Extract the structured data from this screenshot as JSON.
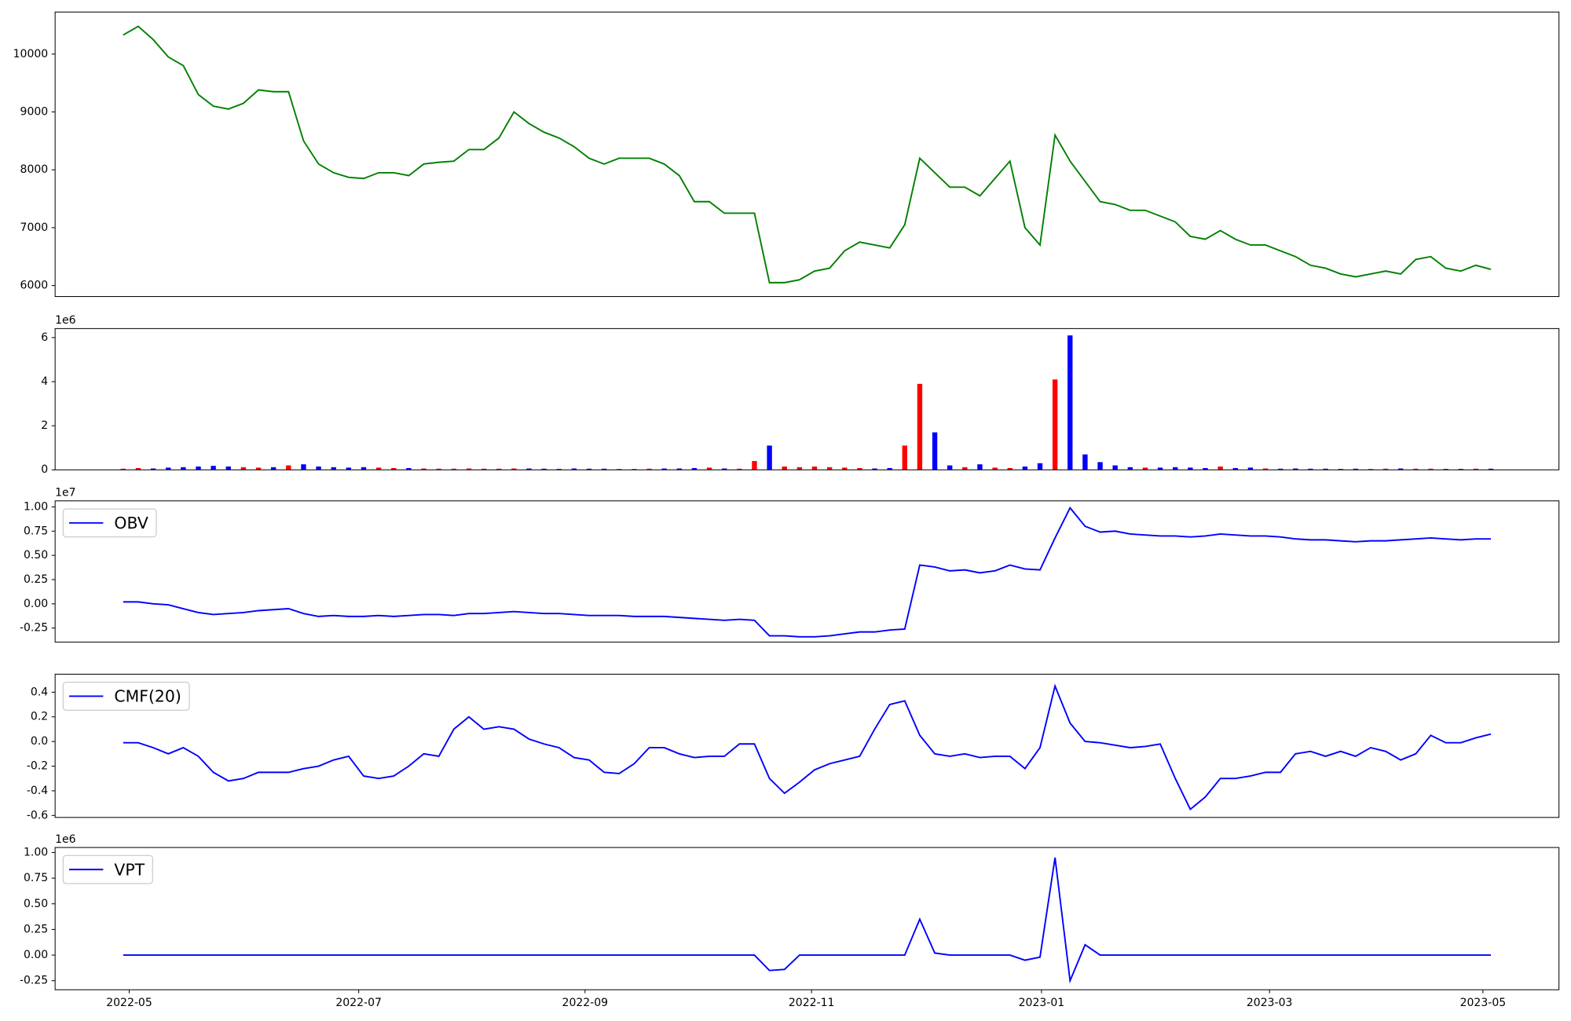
{
  "chart_data": [
    {
      "type": "line",
      "xlim": [
        -4.53,
        95.53
      ],
      "ylim": [
        5810,
        10727
      ],
      "yticks": [
        6000,
        7000,
        8000,
        9000,
        10000
      ],
      "series": [
        {
          "color": "#008000",
          "values": [
            10330,
            10480,
            10250,
            9950,
            9800,
            9300,
            9100,
            9050,
            9150,
            9380,
            9350,
            9350,
            8500,
            8100,
            7950,
            7870,
            7850,
            7950,
            7950,
            7900,
            8100,
            8130,
            8150,
            8350,
            8350,
            8550,
            9000,
            8800,
            8650,
            8550,
            8400,
            8200,
            8100,
            8200,
            8200,
            8200,
            8100,
            7900,
            7450,
            7450,
            7250,
            7250,
            7250,
            6050,
            6050,
            6100,
            6250,
            6300,
            6600,
            6750,
            6700,
            6650,
            7050,
            8200,
            7950,
            7700,
            7700,
            7550,
            7850,
            8150,
            7000,
            6700,
            8600,
            8150,
            7800,
            7450,
            7400,
            7300,
            7300,
            7200,
            7100,
            6850,
            6800,
            6950,
            6800,
            6700,
            6700,
            6600,
            6500,
            6350,
            6300,
            6200,
            6150,
            6200,
            6250,
            6200,
            6450,
            6500,
            6300,
            6250,
            6350,
            6280
          ]
        }
      ]
    },
    {
      "type": "bar",
      "xlim": [
        -4.53,
        95.53
      ],
      "ylim": [
        0,
        6.41
      ],
      "yticks": [
        0,
        2,
        4,
        6
      ],
      "yoffset_label": "1e6",
      "up_color": "#ff0000",
      "down_color": "#0000ff",
      "values": [
        0.05,
        0.08,
        0.06,
        0.1,
        0.12,
        0.15,
        0.18,
        0.15,
        0.12,
        0.1,
        0.12,
        0.2,
        0.25,
        0.15,
        0.12,
        0.1,
        0.12,
        0.1,
        0.08,
        0.08,
        0.06,
        0.05,
        0.05,
        0.06,
        0.05,
        0.05,
        0.06,
        0.06,
        0.05,
        0.04,
        0.06,
        0.05,
        0.05,
        0.04,
        0.04,
        0.05,
        0.06,
        0.06,
        0.08,
        0.1,
        0.06,
        0.05,
        0.4,
        1.1,
        0.15,
        0.12,
        0.15,
        0.12,
        0.1,
        0.08,
        0.06,
        0.08,
        1.1,
        3.9,
        1.7,
        0.2,
        0.12,
        0.25,
        0.1,
        0.08,
        0.15,
        0.3,
        4.1,
        6.1,
        0.7,
        0.35,
        0.2,
        0.12,
        0.1,
        0.1,
        0.12,
        0.1,
        0.08,
        0.15,
        0.08,
        0.1,
        0.06,
        0.05,
        0.06,
        0.05,
        0.05,
        0.04,
        0.05,
        0.04,
        0.05,
        0.06,
        0.05,
        0.05,
        0.04,
        0.04,
        0.05,
        0.05
      ]
    },
    {
      "type": "line",
      "xlim": [
        -4.53,
        95.53
      ],
      "ylim": [
        -0.395,
        1.062
      ],
      "yoffset_label": "1e7",
      "legend": "upper left",
      "yticks": [
        -0.25,
        {
          "value": 0,
          "label": "0.00"
        },
        0.25,
        {
          "value": 0.5,
          "label": "0.50"
        },
        0.75,
        {
          "value": 1,
          "label": "1.00"
        }
      ],
      "series": [
        {
          "name": "OBV",
          "color": "#0000ff",
          "values": [
            0.02,
            0.02,
            0.0,
            -0.01,
            -0.05,
            -0.09,
            -0.11,
            -0.1,
            -0.09,
            -0.07,
            -0.06,
            -0.05,
            -0.1,
            -0.13,
            -0.12,
            -0.13,
            -0.13,
            -0.12,
            -0.13,
            -0.12,
            -0.11,
            -0.11,
            -0.12,
            -0.1,
            -0.1,
            -0.09,
            -0.08,
            -0.09,
            -0.1,
            -0.1,
            -0.11,
            -0.12,
            -0.12,
            -0.12,
            -0.13,
            -0.13,
            -0.13,
            -0.14,
            -0.15,
            -0.16,
            -0.17,
            -0.16,
            -0.17,
            -0.33,
            -0.33,
            -0.34,
            -0.34,
            -0.33,
            -0.31,
            -0.29,
            -0.29,
            -0.27,
            -0.26,
            0.4,
            0.38,
            0.34,
            0.35,
            0.32,
            0.34,
            0.4,
            0.36,
            0.35,
            0.68,
            0.99,
            0.8,
            0.74,
            0.75,
            0.72,
            0.71,
            0.7,
            0.7,
            0.69,
            0.7,
            0.72,
            0.71,
            0.7,
            0.7,
            0.69,
            0.67,
            0.66,
            0.66,
            0.65,
            0.64,
            0.65,
            0.65,
            0.66,
            0.67,
            0.68,
            0.67,
            0.66,
            0.67,
            0.67
          ]
        }
      ]
    },
    {
      "type": "line",
      "xlim": [
        -4.53,
        95.53
      ],
      "ylim": [
        -0.616,
        0.546
      ],
      "legend": "upper left",
      "yticks": [
        -0.6,
        -0.4,
        -0.2,
        {
          "value": 0,
          "label": "0.0"
        },
        0.2,
        0.4
      ],
      "series": [
        {
          "name": "CMF(20)",
          "color": "#0000ff",
          "values": [
            -0.01,
            -0.01,
            -0.05,
            -0.1,
            -0.05,
            -0.12,
            -0.25,
            -0.32,
            -0.3,
            -0.25,
            -0.25,
            -0.25,
            -0.22,
            -0.2,
            -0.15,
            -0.12,
            -0.28,
            -0.3,
            -0.28,
            -0.2,
            -0.1,
            -0.12,
            0.1,
            0.2,
            0.1,
            0.12,
            0.1,
            0.02,
            -0.02,
            -0.05,
            -0.13,
            -0.15,
            -0.25,
            -0.26,
            -0.18,
            -0.05,
            -0.05,
            -0.1,
            -0.13,
            -0.12,
            -0.12,
            -0.02,
            -0.02,
            -0.3,
            -0.42,
            -0.33,
            -0.23,
            -0.18,
            -0.15,
            -0.12,
            0.1,
            0.3,
            0.33,
            0.05,
            -0.1,
            -0.12,
            -0.1,
            -0.13,
            -0.12,
            -0.12,
            -0.22,
            -0.05,
            0.45,
            0.15,
            0.0,
            -0.01,
            -0.03,
            -0.05,
            -0.04,
            -0.02,
            -0.3,
            -0.55,
            -0.45,
            -0.3,
            -0.3,
            -0.28,
            -0.25,
            -0.25,
            -0.1,
            -0.08,
            -0.12,
            -0.08,
            -0.12,
            -0.05,
            -0.08,
            -0.15,
            -0.1,
            0.05,
            -0.01,
            -0.01,
            0.03,
            0.06
          ]
        }
      ]
    },
    {
      "type": "line",
      "xlim": [
        -4.53,
        95.53
      ],
      "ylim": [
        -0.338,
        1.049
      ],
      "yoffset_label": "1e6",
      "legend": "upper left",
      "yticks": [
        -0.25,
        {
          "value": 0,
          "label": "0.00"
        },
        0.25,
        {
          "value": 0.5,
          "label": "0.50"
        },
        0.75,
        {
          "value": 1,
          "label": "1.00"
        }
      ],
      "xticks": [
        {
          "value": 0.4,
          "label": "2022-05"
        },
        {
          "value": 15.67,
          "label": "2022-07"
        },
        {
          "value": 30.73,
          "label": "2022-09"
        },
        {
          "value": 45.8,
          "label": "2022-11"
        },
        {
          "value": 61.1,
          "label": "2023-01"
        },
        {
          "value": 76.27,
          "label": "2023-03"
        },
        {
          "value": 90.47,
          "label": "2023-05"
        }
      ],
      "series": [
        {
          "name": "VPT",
          "color": "#0000ff",
          "values": [
            0,
            0,
            0,
            0,
            0,
            0,
            0,
            0,
            0,
            0,
            0,
            0,
            0,
            0,
            0,
            0,
            0,
            0,
            0,
            0,
            0,
            0,
            0,
            0,
            0,
            0,
            0,
            0,
            0,
            0,
            0,
            0,
            0,
            0,
            0,
            0,
            0,
            0,
            0,
            0,
            0,
            0,
            0,
            -0.15,
            -0.14,
            0,
            0,
            0,
            0,
            0,
            0,
            0,
            0,
            0.35,
            0.02,
            0,
            0,
            0,
            0,
            0,
            -0.05,
            -0.02,
            0.95,
            -0.25,
            0.1,
            0,
            0,
            0,
            0,
            0,
            0,
            0,
            0,
            0,
            0,
            0,
            0,
            0,
            0,
            0,
            0,
            0,
            0,
            0,
            0,
            0,
            0,
            0,
            0,
            0,
            0,
            0
          ]
        }
      ]
    }
  ]
}
